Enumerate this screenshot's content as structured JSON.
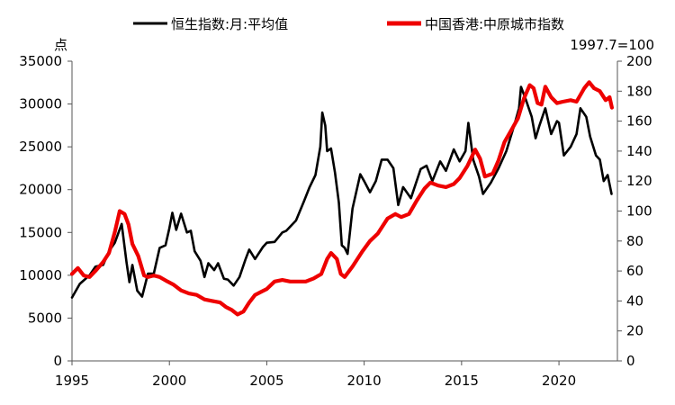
{
  "chart_data": {
    "type": "line",
    "legend_position": "top",
    "grid": false,
    "y_left_label": "点",
    "y_right_label": "1997.7=100",
    "x_ticks": [
      "1995",
      "2000",
      "2005",
      "2010",
      "2015",
      "2020"
    ],
    "x_range": [
      1995,
      2023
    ],
    "y_left_ticks": [
      "0",
      "5000",
      "10000",
      "15000",
      "20000",
      "25000",
      "30000",
      "35000"
    ],
    "y_left_range": [
      0,
      35000
    ],
    "y_right_ticks": [
      "0",
      "20",
      "40",
      "60",
      "80",
      "100",
      "120",
      "140",
      "160",
      "180",
      "200"
    ],
    "y_right_range": [
      0,
      200
    ],
    "series": [
      {
        "name": "恒生指数:月:平均值",
        "axis": "left",
        "color": "#000000",
        "points": [
          [
            1995.0,
            7400
          ],
          [
            1995.4,
            9000
          ],
          [
            1995.9,
            10000
          ],
          [
            1996.2,
            11000
          ],
          [
            1996.6,
            11200
          ],
          [
            1996.9,
            12800
          ],
          [
            1997.2,
            13800
          ],
          [
            1997.55,
            16000
          ],
          [
            1997.8,
            11500
          ],
          [
            1997.95,
            9200
          ],
          [
            1998.1,
            11200
          ],
          [
            1998.35,
            8200
          ],
          [
            1998.6,
            7500
          ],
          [
            1998.9,
            10200
          ],
          [
            1999.2,
            10200
          ],
          [
            1999.5,
            13200
          ],
          [
            1999.8,
            13500
          ],
          [
            2000.0,
            15500
          ],
          [
            2000.15,
            17300
          ],
          [
            2000.35,
            15300
          ],
          [
            2000.6,
            17200
          ],
          [
            2000.9,
            15000
          ],
          [
            2001.1,
            15200
          ],
          [
            2001.3,
            12800
          ],
          [
            2001.6,
            11700
          ],
          [
            2001.8,
            9800
          ],
          [
            2002.0,
            11400
          ],
          [
            2002.3,
            10600
          ],
          [
            2002.5,
            11400
          ],
          [
            2002.8,
            9600
          ],
          [
            2003.0,
            9500
          ],
          [
            2003.3,
            8800
          ],
          [
            2003.6,
            9800
          ],
          [
            2003.9,
            11800
          ],
          [
            2004.1,
            13000
          ],
          [
            2004.4,
            11900
          ],
          [
            2004.8,
            13300
          ],
          [
            2005.0,
            13800
          ],
          [
            2005.4,
            13900
          ],
          [
            2005.8,
            15000
          ],
          [
            2006.0,
            15200
          ],
          [
            2006.5,
            16400
          ],
          [
            2006.9,
            18600
          ],
          [
            2007.2,
            20300
          ],
          [
            2007.5,
            21700
          ],
          [
            2007.75,
            25000
          ],
          [
            2007.85,
            29000
          ],
          [
            2008.0,
            27500
          ],
          [
            2008.1,
            24500
          ],
          [
            2008.3,
            24800
          ],
          [
            2008.5,
            22000
          ],
          [
            2008.7,
            18500
          ],
          [
            2008.85,
            13500
          ],
          [
            2009.0,
            13200
          ],
          [
            2009.15,
            12500
          ],
          [
            2009.4,
            17800
          ],
          [
            2009.8,
            21800
          ],
          [
            2010.0,
            21000
          ],
          [
            2010.3,
            19700
          ],
          [
            2010.6,
            21000
          ],
          [
            2010.9,
            23500
          ],
          [
            2011.2,
            23500
          ],
          [
            2011.5,
            22500
          ],
          [
            2011.75,
            18200
          ],
          [
            2012.0,
            20300
          ],
          [
            2012.4,
            19000
          ],
          [
            2012.9,
            22400
          ],
          [
            2013.2,
            22800
          ],
          [
            2013.5,
            21000
          ],
          [
            2013.9,
            23300
          ],
          [
            2014.2,
            22200
          ],
          [
            2014.6,
            24700
          ],
          [
            2014.9,
            23300
          ],
          [
            2015.2,
            24500
          ],
          [
            2015.35,
            27800
          ],
          [
            2015.6,
            23500
          ],
          [
            2015.9,
            21500
          ],
          [
            2016.1,
            19500
          ],
          [
            2016.5,
            20800
          ],
          [
            2016.9,
            22500
          ],
          [
            2017.3,
            24500
          ],
          [
            2017.7,
            27500
          ],
          [
            2017.95,
            29500
          ],
          [
            2018.05,
            32000
          ],
          [
            2018.3,
            30500
          ],
          [
            2018.6,
            28500
          ],
          [
            2018.8,
            26000
          ],
          [
            2019.0,
            27500
          ],
          [
            2019.3,
            29500
          ],
          [
            2019.6,
            26500
          ],
          [
            2019.9,
            28000
          ],
          [
            2020.0,
            27800
          ],
          [
            2020.25,
            24000
          ],
          [
            2020.6,
            25000
          ],
          [
            2020.9,
            26500
          ],
          [
            2021.1,
            29500
          ],
          [
            2021.4,
            28500
          ],
          [
            2021.6,
            26200
          ],
          [
            2021.9,
            24000
          ],
          [
            2022.1,
            23500
          ],
          [
            2022.3,
            21000
          ],
          [
            2022.5,
            21700
          ],
          [
            2022.7,
            19500
          ]
        ]
      },
      {
        "name": "中国香港:中原城市指数",
        "axis": "right",
        "color": "#ee0000",
        "points": [
          [
            1995.0,
            58
          ],
          [
            1995.3,
            62
          ],
          [
            1995.6,
            57
          ],
          [
            1995.9,
            56
          ],
          [
            1996.2,
            60
          ],
          [
            1996.6,
            66
          ],
          [
            1996.9,
            72
          ],
          [
            1997.2,
            86
          ],
          [
            1997.45,
            100
          ],
          [
            1997.7,
            98
          ],
          [
            1997.9,
            91
          ],
          [
            1998.1,
            78
          ],
          [
            1998.4,
            70
          ],
          [
            1998.7,
            57
          ],
          [
            1998.9,
            56
          ],
          [
            1999.2,
            57
          ],
          [
            1999.5,
            56
          ],
          [
            1999.9,
            53
          ],
          [
            2000.2,
            51
          ],
          [
            2000.6,
            47
          ],
          [
            2001.0,
            45
          ],
          [
            2001.4,
            44
          ],
          [
            2001.8,
            41
          ],
          [
            2002.2,
            40
          ],
          [
            2002.6,
            39
          ],
          [
            2002.9,
            36
          ],
          [
            2003.2,
            34
          ],
          [
            2003.5,
            31
          ],
          [
            2003.8,
            33
          ],
          [
            2004.1,
            39
          ],
          [
            2004.4,
            44
          ],
          [
            2004.7,
            46
          ],
          [
            2005.0,
            48
          ],
          [
            2005.4,
            53
          ],
          [
            2005.8,
            54
          ],
          [
            2006.2,
            53
          ],
          [
            2006.6,
            53
          ],
          [
            2007.0,
            53
          ],
          [
            2007.4,
            55
          ],
          [
            2007.8,
            58
          ],
          [
            2008.1,
            68
          ],
          [
            2008.3,
            72
          ],
          [
            2008.6,
            68
          ],
          [
            2008.8,
            58
          ],
          [
            2009.0,
            56
          ],
          [
            2009.4,
            63
          ],
          [
            2009.9,
            73
          ],
          [
            2010.3,
            80
          ],
          [
            2010.7,
            85
          ],
          [
            2011.2,
            95
          ],
          [
            2011.6,
            98
          ],
          [
            2011.9,
            96
          ],
          [
            2012.3,
            98
          ],
          [
            2012.7,
            107
          ],
          [
            2013.1,
            115
          ],
          [
            2013.4,
            119
          ],
          [
            2013.8,
            117
          ],
          [
            2014.2,
            116
          ],
          [
            2014.6,
            118
          ],
          [
            2014.9,
            122
          ],
          [
            2015.3,
            130
          ],
          [
            2015.7,
            141
          ],
          [
            2015.95,
            135
          ],
          [
            2016.2,
            123
          ],
          [
            2016.6,
            125
          ],
          [
            2016.9,
            134
          ],
          [
            2017.2,
            146
          ],
          [
            2017.6,
            155
          ],
          [
            2017.9,
            162
          ],
          [
            2018.2,
            175
          ],
          [
            2018.5,
            184
          ],
          [
            2018.7,
            182
          ],
          [
            2018.9,
            172
          ],
          [
            2019.1,
            171
          ],
          [
            2019.3,
            183
          ],
          [
            2019.6,
            176
          ],
          [
            2019.9,
            172
          ],
          [
            2020.2,
            173
          ],
          [
            2020.6,
            174
          ],
          [
            2020.9,
            173
          ],
          [
            2021.3,
            182
          ],
          [
            2021.55,
            186
          ],
          [
            2021.8,
            182
          ],
          [
            2022.1,
            180
          ],
          [
            2022.4,
            174
          ],
          [
            2022.6,
            176
          ],
          [
            2022.72,
            169
          ]
        ]
      }
    ]
  }
}
